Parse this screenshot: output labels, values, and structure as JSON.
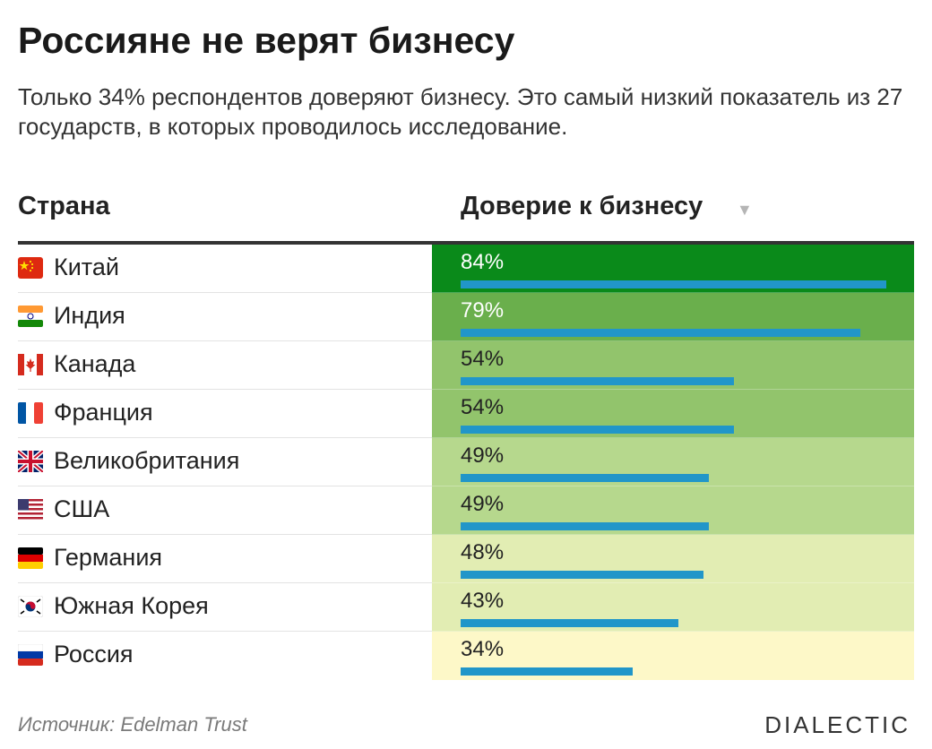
{
  "title": "Россияне не верят бизнесу",
  "subtitle": "Только 34% респондентов доверяют бизнесу. Это самый низкий показатель из 27 государств, в которых проводилось исследование.",
  "columns": {
    "country": "Страна",
    "trust": "Доверие к бизнесу",
    "sort_icon": "sort-down-icon"
  },
  "source": "Источник: Edelman Trust",
  "brand": "DIALECTIC",
  "colors": {
    "bar": "#2196c9",
    "header_rule": "#333333"
  },
  "chart_data": {
    "type": "table",
    "categories": [
      "Китай",
      "Индия",
      "Канада",
      "Франция",
      "Великобритания",
      "США",
      "Германия",
      "Южная Корея",
      "Россия"
    ],
    "values": [
      84,
      79,
      54,
      54,
      49,
      49,
      48,
      43,
      34
    ],
    "labels": [
      "84%",
      "79%",
      "54%",
      "54%",
      "49%",
      "49%",
      "48%",
      "43%",
      "34%"
    ],
    "flags": [
      "flag-china-icon",
      "flag-india-icon",
      "flag-canada-icon",
      "flag-france-icon",
      "flag-uk-icon",
      "flag-usa-icon",
      "flag-germany-icon",
      "flag-south-korea-icon",
      "flag-russia-icon"
    ],
    "cell_colors": [
      "#0a8a1a",
      "#6aaf4c",
      "#92c46c",
      "#92c46c",
      "#b6d88d",
      "#b6d88d",
      "#e2edb3",
      "#e2edb3",
      "#fdf8c8"
    ],
    "text_colors": [
      "#ffffff",
      "#ffffff",
      "#222222",
      "#222222",
      "#222222",
      "#222222",
      "#222222",
      "#222222",
      "#222222"
    ],
    "xlim": [
      0,
      100
    ]
  }
}
